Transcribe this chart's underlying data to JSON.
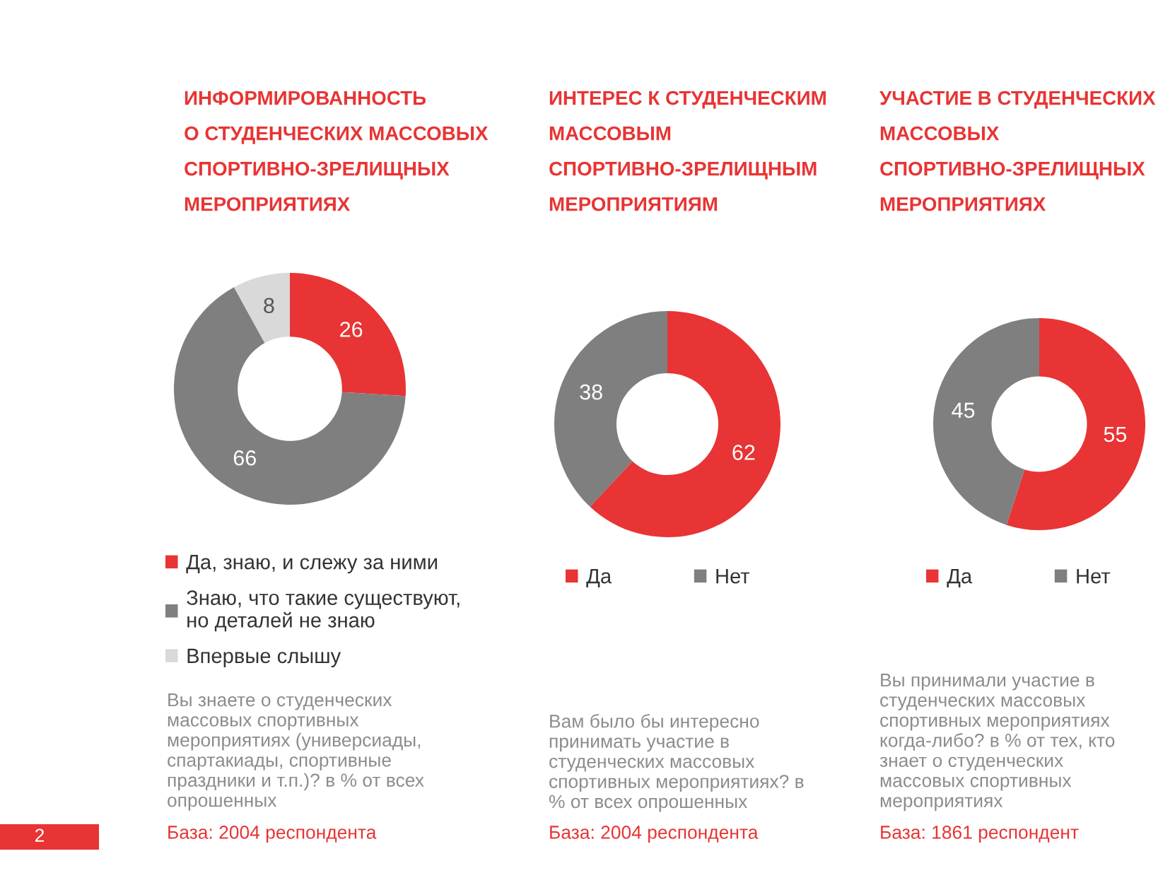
{
  "chart_data": [
    {
      "type": "donut",
      "title": "ИНФОРМИРОВАННОСТЬ\nО СТУДЕНЧЕСКИХ МАССОВЫХ\nСПОРТИВНО-ЗРЕЛИЩНЫХ\nМЕРОПРИЯТИЯХ",
      "categories": [
        "Да, знаю, и слежу за ними",
        "Знаю, что такие существуют,\nно деталей не знаю",
        "Впервые слышу"
      ],
      "values": [
        26,
        66,
        8
      ],
      "colors": [
        "#e83434",
        "#7f7f7f",
        "#d9d9d9"
      ],
      "data_labels": true,
      "legend": "bottom",
      "annotations": [
        "Вы знаете о студенческих\nмассовых спортивных\nмероприятиях (универсиады,\nспартакиады, спортивные\nпраздники и т.п.)? в % от всех\nопрошенных",
        "База: 2004 респондента",
        "2"
      ]
    },
    {
      "type": "donut",
      "title": "ИНТЕРЕС К СТУДЕНЧЕСКИМ\nМАССОВЫМ\nСПОРТИВНО-ЗРЕЛИЩНЫМ\nМЕРОПРИЯТИЯМ",
      "categories": [
        "Да",
        "Нет"
      ],
      "values": [
        62,
        38
      ],
      "colors": [
        "#e83434",
        "#7f7f7f"
      ],
      "data_labels": true,
      "legend": "bottom",
      "annotations": [
        "Вам было бы интересно\nпринимать участие в\nстуденческих массовых\nспортивных мероприятиях? в\n% от всех опрошенных",
        "База: 2004 респондента"
      ]
    },
    {
      "type": "donut",
      "title": "УЧАСТИЕ В СТУДЕНЧЕСКИХ\nМАССОВЫХ\nСПОРТИВНО-ЗРЕЛИЩНЫХ\nМЕРОПРИЯТИЯХ",
      "categories": [
        "Да",
        "Нет"
      ],
      "values": [
        55,
        45
      ],
      "colors": [
        "#e83434",
        "#7f7f7f"
      ],
      "data_labels": true,
      "legend": "bottom",
      "annotations": [
        "Вы принимали участие в\nстуденческих массовых\nспортивных мероприятиях\nкогда-либо? в % от тех, кто\nзнает о студенческих\nмассовых спортивных\nмероприятиях",
        "База: 1861 респондент"
      ]
    }
  ]
}
